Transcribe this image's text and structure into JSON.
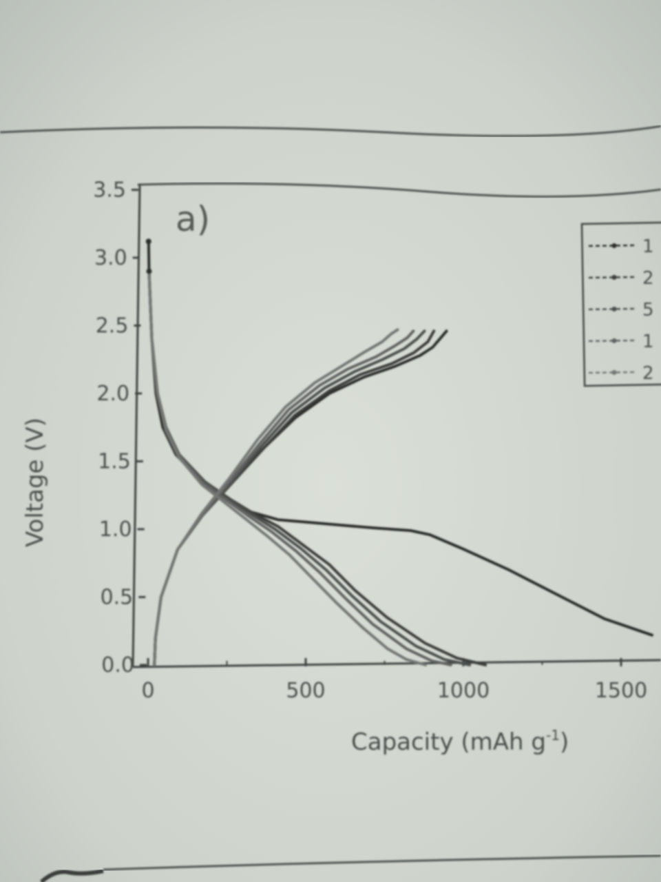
{
  "chart_data": {
    "type": "line",
    "panel_label": "a)",
    "xlabel": "Capacity (mAh g",
    "xlabel_sup": "-1",
    "xlabel_end": ")",
    "ylabel": "Voltage (V)",
    "xlim": [
      0,
      1600
    ],
    "ylim": [
      0.0,
      3.5
    ],
    "x_ticks": [
      "0",
      "500",
      "1000",
      "1500"
    ],
    "y_ticks": [
      "0.0",
      "0.5",
      "1.0",
      "1.5",
      "2.0",
      "2.5",
      "3.0",
      "3.5"
    ],
    "grid": false,
    "legend_position": "top-right",
    "legend": [
      "1",
      "2",
      "5",
      "1",
      "2"
    ],
    "series": [
      {
        "color": "#2a2d2b",
        "discharge": [
          [
            25,
            3.12
          ],
          [
            25,
            2.9
          ],
          [
            30,
            2.4
          ],
          [
            40,
            2.0
          ],
          [
            60,
            1.75
          ],
          [
            100,
            1.55
          ],
          [
            180,
            1.35
          ],
          [
            260,
            1.22
          ],
          [
            330,
            1.13
          ],
          [
            420,
            1.07
          ],
          [
            520,
            1.05
          ],
          [
            620,
            1.03
          ],
          [
            720,
            1.01
          ],
          [
            840,
            0.99
          ],
          [
            900,
            0.96
          ],
          [
            1000,
            0.86
          ],
          [
            1150,
            0.7
          ],
          [
            1300,
            0.52
          ],
          [
            1450,
            0.34
          ],
          [
            1550,
            0.26
          ],
          [
            1600,
            0.22
          ]
        ],
        "charge": [
          [
            20,
            0.0
          ],
          [
            25,
            0.2
          ],
          [
            45,
            0.5
          ],
          [
            100,
            0.85
          ],
          [
            180,
            1.1
          ],
          [
            280,
            1.35
          ],
          [
            380,
            1.6
          ],
          [
            480,
            1.82
          ],
          [
            590,
            2.0
          ],
          [
            700,
            2.12
          ],
          [
            800,
            2.2
          ],
          [
            880,
            2.28
          ],
          [
            920,
            2.34
          ],
          [
            950,
            2.42
          ],
          [
            965,
            2.46
          ]
        ]
      },
      {
        "color": "#3a3e3b",
        "discharge": [
          [
            25,
            2.88
          ],
          [
            30,
            2.4
          ],
          [
            45,
            2.0
          ],
          [
            70,
            1.75
          ],
          [
            110,
            1.55
          ],
          [
            190,
            1.35
          ],
          [
            270,
            1.22
          ],
          [
            340,
            1.12
          ],
          [
            420,
            1.02
          ],
          [
            500,
            0.88
          ],
          [
            580,
            0.74
          ],
          [
            660,
            0.55
          ],
          [
            760,
            0.35
          ],
          [
            880,
            0.16
          ],
          [
            980,
            0.05
          ],
          [
            1070,
            0.0
          ]
        ],
        "charge": [
          [
            20,
            0.0
          ],
          [
            25,
            0.2
          ],
          [
            45,
            0.5
          ],
          [
            100,
            0.85
          ],
          [
            180,
            1.1
          ],
          [
            280,
            1.35
          ],
          [
            380,
            1.6
          ],
          [
            480,
            1.84
          ],
          [
            590,
            2.02
          ],
          [
            690,
            2.14
          ],
          [
            790,
            2.22
          ],
          [
            860,
            2.3
          ],
          [
            905,
            2.38
          ],
          [
            925,
            2.46
          ]
        ]
      },
      {
        "color": "#4c504d",
        "discharge": [
          [
            25,
            2.88
          ],
          [
            30,
            2.4
          ],
          [
            45,
            2.0
          ],
          [
            70,
            1.75
          ],
          [
            110,
            1.55
          ],
          [
            190,
            1.35
          ],
          [
            265,
            1.22
          ],
          [
            335,
            1.11
          ],
          [
            410,
            1.0
          ],
          [
            490,
            0.86
          ],
          [
            570,
            0.7
          ],
          [
            650,
            0.51
          ],
          [
            740,
            0.32
          ],
          [
            850,
            0.14
          ],
          [
            940,
            0.04
          ],
          [
            1020,
            0.0
          ]
        ],
        "charge": [
          [
            20,
            0.0
          ],
          [
            25,
            0.2
          ],
          [
            45,
            0.5
          ],
          [
            100,
            0.85
          ],
          [
            180,
            1.1
          ],
          [
            280,
            1.36
          ],
          [
            375,
            1.62
          ],
          [
            470,
            1.86
          ],
          [
            575,
            2.04
          ],
          [
            670,
            2.16
          ],
          [
            760,
            2.25
          ],
          [
            830,
            2.33
          ],
          [
            870,
            2.4
          ],
          [
            895,
            2.46
          ]
        ]
      },
      {
        "color": "#606462",
        "discharge": [
          [
            25,
            2.88
          ],
          [
            30,
            2.4
          ],
          [
            45,
            2.0
          ],
          [
            70,
            1.74
          ],
          [
            110,
            1.54
          ],
          [
            185,
            1.34
          ],
          [
            260,
            1.21
          ],
          [
            325,
            1.1
          ],
          [
            400,
            0.98
          ],
          [
            475,
            0.84
          ],
          [
            550,
            0.68
          ],
          [
            630,
            0.49
          ],
          [
            715,
            0.3
          ],
          [
            820,
            0.12
          ],
          [
            900,
            0.03
          ],
          [
            960,
            0.0
          ]
        ],
        "charge": [
          [
            20,
            0.0
          ],
          [
            25,
            0.2
          ],
          [
            45,
            0.5
          ],
          [
            100,
            0.85
          ],
          [
            180,
            1.1
          ],
          [
            275,
            1.37
          ],
          [
            370,
            1.64
          ],
          [
            460,
            1.88
          ],
          [
            560,
            2.06
          ],
          [
            650,
            2.18
          ],
          [
            740,
            2.27
          ],
          [
            800,
            2.35
          ],
          [
            840,
            2.41
          ],
          [
            860,
            2.46
          ]
        ]
      },
      {
        "color": "#737775",
        "discharge": [
          [
            25,
            2.88
          ],
          [
            30,
            2.4
          ],
          [
            45,
            2.0
          ],
          [
            70,
            1.73
          ],
          [
            110,
            1.53
          ],
          [
            180,
            1.33
          ],
          [
            250,
            1.2
          ],
          [
            315,
            1.08
          ],
          [
            385,
            0.95
          ],
          [
            455,
            0.81
          ],
          [
            525,
            0.64
          ],
          [
            600,
            0.46
          ],
          [
            680,
            0.28
          ],
          [
            760,
            0.12
          ],
          [
            820,
            0.04
          ],
          [
            880,
            0.0
          ]
        ],
        "charge": [
          [
            20,
            0.0
          ],
          [
            25,
            0.2
          ],
          [
            45,
            0.5
          ],
          [
            100,
            0.85
          ],
          [
            180,
            1.12
          ],
          [
            270,
            1.38
          ],
          [
            360,
            1.66
          ],
          [
            450,
            1.9
          ],
          [
            545,
            2.08
          ],
          [
            630,
            2.2
          ],
          [
            700,
            2.3
          ],
          [
            760,
            2.38
          ],
          [
            790,
            2.44
          ],
          [
            810,
            2.47
          ]
        ]
      }
    ]
  }
}
